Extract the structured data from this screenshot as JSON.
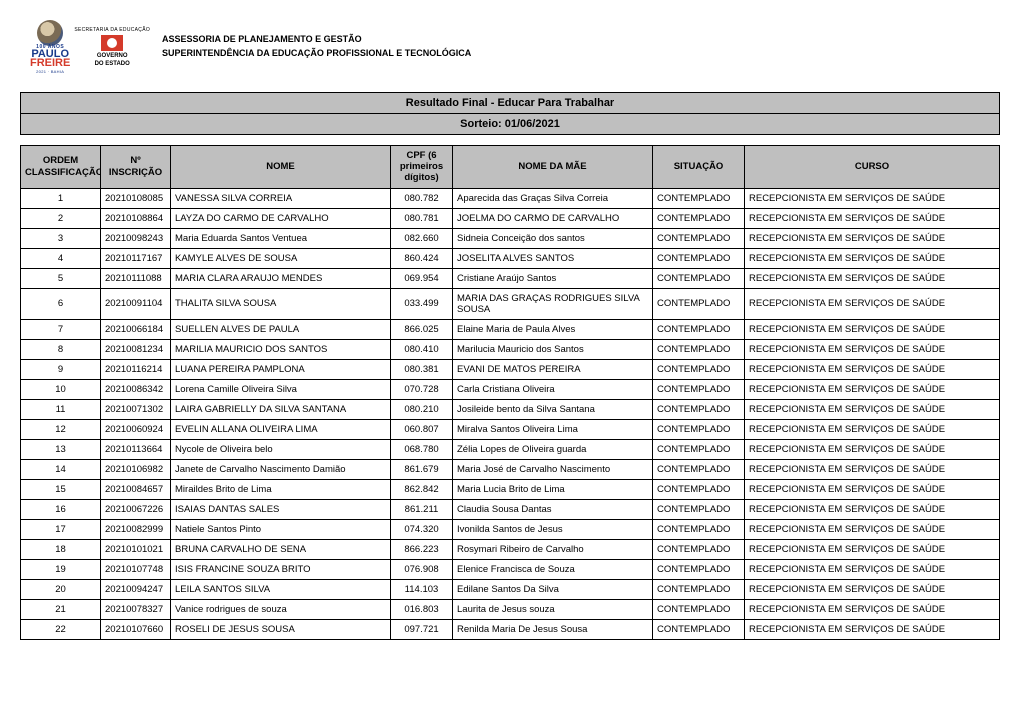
{
  "header": {
    "line1": "ASSESSORIA DE PLANEJAMENTO E GESTÃO",
    "line2": "SUPERINTENDÊNCIA DA EDUCAÇÃO PROFISSIONAL E TECNOLÓGICA",
    "logo_100": "100 ANOS",
    "logo_paulo": "PAULO",
    "logo_freire": "FREIRE",
    "logo_sub": "2021 · BAHIA",
    "gov_top": "SECRETARIA DA EDUCAÇÃO",
    "gov_line1": "GOVERNO",
    "gov_line2": "DO ESTADO"
  },
  "titles": {
    "t1": "Resultado Final - Educar Para Trabalhar",
    "t2": "Sorteio: 01/06/2021"
  },
  "columns": {
    "ordem": "ORDEM CLASSIFICAÇÃO",
    "insc": "Nº INSCRIÇÃO",
    "nome": "NOME",
    "cpf": "CPF (6 primeiros dígitos)",
    "mae": "NOME DA MÃE",
    "sit": "SITUAÇÃO",
    "curso": "CURSO"
  },
  "colors": {
    "header_bg": "#bfbfbf",
    "border": "#000000",
    "text": "#000000",
    "page_bg": "#ffffff"
  },
  "rows": [
    {
      "ordem": "1",
      "insc": "20210108085",
      "nome": "VANESSA SILVA CORREIA",
      "cpf": "080.782",
      "mae": "Aparecida das Graças Silva Correia",
      "sit": "CONTEMPLADO",
      "curso": "RECEPCIONISTA EM SERVIÇOS DE SAÚDE"
    },
    {
      "ordem": "2",
      "insc": "20210108864",
      "nome": "LAYZA DO CARMO DE CARVALHO",
      "cpf": "080.781",
      "mae": "JOELMA DO CARMO DE CARVALHO",
      "sit": "CONTEMPLADO",
      "curso": "RECEPCIONISTA EM SERVIÇOS DE SAÚDE"
    },
    {
      "ordem": "3",
      "insc": "20210098243",
      "nome": "Maria Eduarda Santos Ventuea",
      "cpf": "082.660",
      "mae": "Sidneia Conceição dos santos",
      "sit": "CONTEMPLADO",
      "curso": "RECEPCIONISTA EM SERVIÇOS DE SAÚDE"
    },
    {
      "ordem": "4",
      "insc": "20210117167",
      "nome": "KAMYLE ALVES DE SOUSA",
      "cpf": "860.424",
      "mae": "JOSELITA ALVES SANTOS",
      "sit": "CONTEMPLADO",
      "curso": "RECEPCIONISTA EM SERVIÇOS DE SAÚDE"
    },
    {
      "ordem": "5",
      "insc": "20210111088",
      "nome": "MARIA CLARA ARAUJO MENDES",
      "cpf": "069.954",
      "mae": "Cristiane Araújo Santos",
      "sit": "CONTEMPLADO",
      "curso": "RECEPCIONISTA EM SERVIÇOS DE SAÚDE"
    },
    {
      "ordem": "6",
      "insc": "20210091104",
      "nome": "THALITA SILVA SOUSA",
      "cpf": "033.499",
      "mae": "MARIA DAS GRAÇAS RODRIGUES SILVA SOUSA",
      "sit": "CONTEMPLADO",
      "curso": "RECEPCIONISTA EM SERVIÇOS DE SAÚDE"
    },
    {
      "ordem": "7",
      "insc": "20210066184",
      "nome": "SUELLEN ALVES DE PAULA",
      "cpf": "866.025",
      "mae": "Elaine Maria de Paula Alves",
      "sit": "CONTEMPLADO",
      "curso": "RECEPCIONISTA EM SERVIÇOS DE SAÚDE"
    },
    {
      "ordem": "8",
      "insc": "20210081234",
      "nome": "MARILIA MAURICIO DOS SANTOS",
      "cpf": "080.410",
      "mae": "Marilucia Mauricio dos Santos",
      "sit": "CONTEMPLADO",
      "curso": "RECEPCIONISTA EM SERVIÇOS DE SAÚDE"
    },
    {
      "ordem": "9",
      "insc": "20210116214",
      "nome": "LUANA PEREIRA PAMPLONA",
      "cpf": "080.381",
      "mae": "EVANI DE MATOS PEREIRA",
      "sit": "CONTEMPLADO",
      "curso": "RECEPCIONISTA EM SERVIÇOS DE SAÚDE"
    },
    {
      "ordem": "10",
      "insc": "20210086342",
      "nome": "Lorena Camille Oliveira Silva",
      "cpf": "070.728",
      "mae": "Carla Cristiana Oliveira",
      "sit": "CONTEMPLADO",
      "curso": "RECEPCIONISTA EM SERVIÇOS DE SAÚDE"
    },
    {
      "ordem": "11",
      "insc": "20210071302",
      "nome": "LAIRA GABRIELLY DA SILVA SANTANA",
      "cpf": "080.210",
      "mae": "Josileide bento da Silva Santana",
      "sit": "CONTEMPLADO",
      "curso": "RECEPCIONISTA EM SERVIÇOS DE SAÚDE"
    },
    {
      "ordem": "12",
      "insc": "20210060924",
      "nome": "EVELIN ALLANA OLIVEIRA LIMA",
      "cpf": "060.807",
      "mae": "Miralva Santos Oliveira Lima",
      "sit": "CONTEMPLADO",
      "curso": "RECEPCIONISTA EM SERVIÇOS DE SAÚDE"
    },
    {
      "ordem": "13",
      "insc": "20210113664",
      "nome": "Nycole de Oliveira belo",
      "cpf": "068.780",
      "mae": "Zélia Lopes de Oliveira guarda",
      "sit": "CONTEMPLADO",
      "curso": "RECEPCIONISTA EM SERVIÇOS DE SAÚDE"
    },
    {
      "ordem": "14",
      "insc": "20210106982",
      "nome": "Janete de Carvalho Nascimento Damião",
      "cpf": "861.679",
      "mae": "Maria José de Carvalho Nascimento",
      "sit": "CONTEMPLADO",
      "curso": "RECEPCIONISTA EM SERVIÇOS DE SAÚDE"
    },
    {
      "ordem": "15",
      "insc": "20210084657",
      "nome": "Miraildes Brito de Lima",
      "cpf": "862.842",
      "mae": "Maria Lucia Brito de Lima",
      "sit": "CONTEMPLADO",
      "curso": "RECEPCIONISTA EM SERVIÇOS DE SAÚDE"
    },
    {
      "ordem": "16",
      "insc": "20210067226",
      "nome": "ISAIAS DANTAS SALES",
      "cpf": "861.211",
      "mae": "Claudia Sousa Dantas",
      "sit": "CONTEMPLADO",
      "curso": "RECEPCIONISTA EM SERVIÇOS DE SAÚDE"
    },
    {
      "ordem": "17",
      "insc": "20210082999",
      "nome": "Natiele Santos Pinto",
      "cpf": "074.320",
      "mae": "Ivonilda Santos de Jesus",
      "sit": "CONTEMPLADO",
      "curso": "RECEPCIONISTA EM SERVIÇOS DE SAÚDE"
    },
    {
      "ordem": "18",
      "insc": "20210101021",
      "nome": "BRUNA CARVALHO DE SENA",
      "cpf": "866.223",
      "mae": "Rosymari Ribeiro de Carvalho",
      "sit": "CONTEMPLADO",
      "curso": "RECEPCIONISTA EM SERVIÇOS DE SAÚDE"
    },
    {
      "ordem": "19",
      "insc": "20210107748",
      "nome": "ISIS FRANCINE SOUZA BRITO",
      "cpf": "076.908",
      "mae": "Elenice Francisca de Souza",
      "sit": "CONTEMPLADO",
      "curso": "RECEPCIONISTA EM SERVIÇOS DE SAÚDE"
    },
    {
      "ordem": "20",
      "insc": "20210094247",
      "nome": "LEILA SANTOS SILVA",
      "cpf": "114.103",
      "mae": "Edilane Santos Da Silva",
      "sit": "CONTEMPLADO",
      "curso": "RECEPCIONISTA EM SERVIÇOS DE SAÚDE"
    },
    {
      "ordem": "21",
      "insc": "20210078327",
      "nome": "Vanice rodrigues de souza",
      "cpf": "016.803",
      "mae": "Laurita de Jesus souza",
      "sit": "CONTEMPLADO",
      "curso": "RECEPCIONISTA EM SERVIÇOS DE SAÚDE"
    },
    {
      "ordem": "22",
      "insc": "20210107660",
      "nome": "ROSELI DE JESUS SOUSA",
      "cpf": "097.721",
      "mae": "Renilda Maria De Jesus Sousa",
      "sit": "CONTEMPLADO",
      "curso": "RECEPCIONISTA EM SERVIÇOS DE SAÚDE"
    }
  ]
}
